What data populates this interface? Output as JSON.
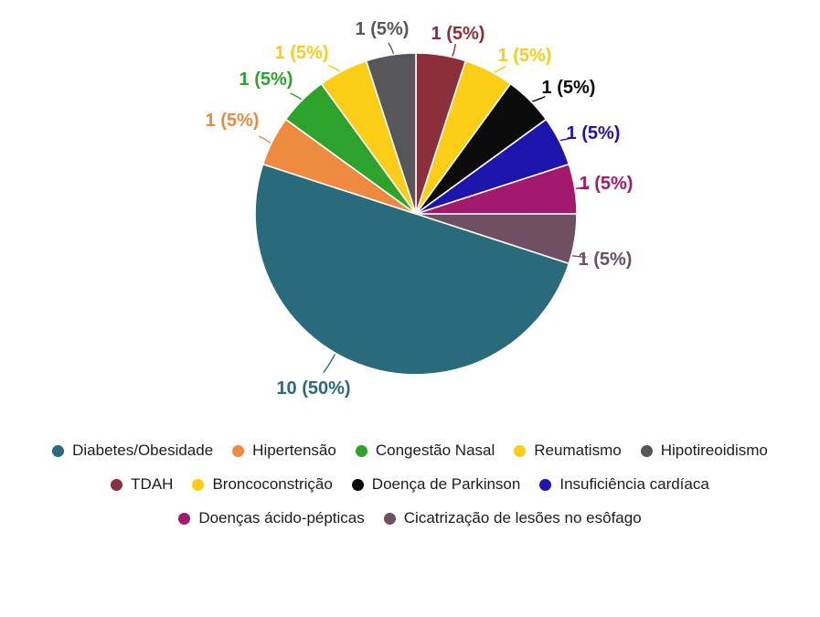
{
  "chart_data": {
    "type": "pie",
    "title": "",
    "total": 20,
    "direction": "clockwise",
    "start_angle_deg": 0,
    "legend_position": "bottom",
    "slices": [
      {
        "label": "TDAH",
        "value": 1,
        "percent": 5,
        "display": "1 (5%)",
        "color": "#8B2F3C"
      },
      {
        "label": "Broncoconstrição",
        "value": 1,
        "percent": 5,
        "display": "1 (5%)",
        "color": "#FBCD16"
      },
      {
        "label": "Doença de Parkinson",
        "value": 1,
        "percent": 5,
        "display": "1 (5%)",
        "color": "#0B0B0B"
      },
      {
        "label": "Insuficiência cardíaca",
        "value": 1,
        "percent": 5,
        "display": "1 (5%)",
        "color": "#1E16AC"
      },
      {
        "label": "Doenças ácido-pépticas",
        "value": 1,
        "percent": 5,
        "display": "1 (5%)",
        "color": "#A3196D"
      },
      {
        "label": "Cicatrização de lesões no esôfago",
        "value": 1,
        "percent": 5,
        "display": "1 (5%)",
        "color": "#6F5062"
      },
      {
        "label": "Diabetes/Obesidade",
        "value": 10,
        "percent": 50,
        "display": "10 (50%)",
        "color": "#2A6B7B"
      },
      {
        "label": "Hipertensão",
        "value": 1,
        "percent": 5,
        "display": "1 (5%)",
        "color": "#EE8A40"
      },
      {
        "label": "Congestão Nasal",
        "value": 1,
        "percent": 5,
        "display": "1 (5%)",
        "color": "#2DA22D"
      },
      {
        "label": "Reumatismo",
        "value": 1,
        "percent": 5,
        "display": "1 (5%)",
        "color": "#FBCD16"
      },
      {
        "label": "Hipotireoidismo",
        "value": 1,
        "percent": 5,
        "display": "1 (5%)",
        "color": "#57575A"
      }
    ],
    "legend_rows": [
      [
        6,
        7,
        8,
        9,
        10
      ],
      [
        0,
        1,
        2,
        3
      ],
      [
        4,
        5
      ]
    ]
  }
}
